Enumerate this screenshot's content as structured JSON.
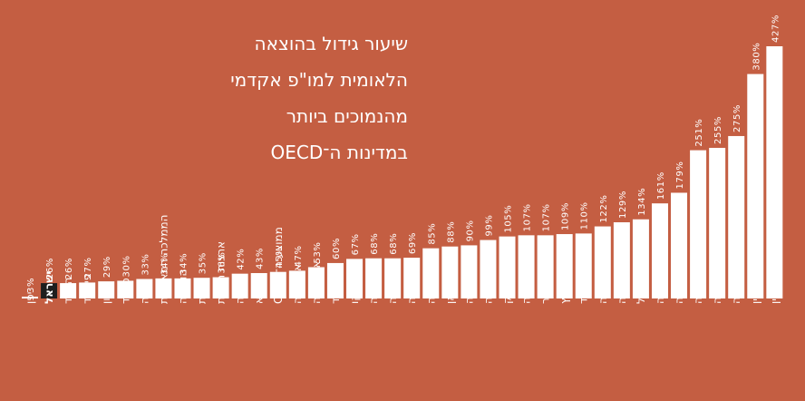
{
  "chart_data": {
    "type": "bar",
    "title_lines": [
      "שיעור גידול בהוצאה",
      "הלאומית למו\"פ אקדמי",
      "מהנמוכים ביותר",
      "במדינות ה־OECD"
    ],
    "categories": [
      "יפן",
      "ישראל",
      "הולנד",
      "פינלנד",
      "יוון",
      "ספרד",
      "קנדה",
      "הממלכה המאוחדת",
      "הונגריה",
      "צרפת",
      "ארצות הברית",
      "שוודיה",
      "ליטא",
      "ממוצע ה־OECD",
      "אוסטריה",
      "ארגנטינה",
      "אירלנד",
      "מקסיקו",
      "בלגיה",
      "קולומביה",
      "גרמניה",
      "סלובניה",
      "טייוואן",
      "טורקיה",
      "אוסטרליה",
      "דנמרק",
      "נורווגיה",
      "סינגפור",
      "שוויץ",
      "תאילנד",
      "אסטוניה",
      "דרום אפריקה",
      "פורטוגל",
      "קוריאה",
      "רוסיה",
      "לטביה",
      "סלובקיה",
      "צ'כיה",
      "פולין",
      "סין"
    ],
    "values": [
      3,
      26,
      26,
      27,
      29,
      30,
      33,
      34,
      34,
      35,
      36,
      42,
      43,
      45,
      47,
      53,
      60,
      67,
      68,
      68,
      69,
      85,
      88,
      90,
      99,
      105,
      107,
      107,
      109,
      110,
      122,
      129,
      134,
      161,
      179,
      251,
      255,
      275,
      380,
      427
    ],
    "value_labels": [
      "3%",
      "26%",
      "26%",
      "27%",
      "29%",
      "30%",
      "33%",
      "34%",
      "34%",
      "35%",
      "36%",
      "42%",
      "43%",
      "45%",
      "47%",
      "53%",
      "60%",
      "67%",
      "68%",
      "68%",
      "69%",
      "85%",
      "88%",
      "90%",
      "99%",
      "105%",
      "107%",
      "107%",
      "109%",
      "110%",
      "122%",
      "129%",
      "134%",
      "161%",
      "179%",
      "251%",
      "255%",
      "275%",
      "380%",
      "427%"
    ],
    "highlight_index": 1,
    "ylim": [
      0,
      427
    ],
    "colors": {
      "background": "#c45e42",
      "bar": "#ffffff",
      "highlight_bar": "#1e1e1e",
      "text": "#ffffff"
    }
  }
}
